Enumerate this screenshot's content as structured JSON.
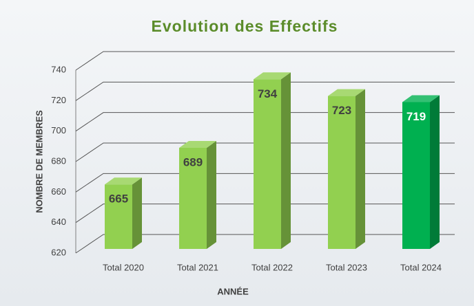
{
  "chart_data": {
    "type": "bar3d",
    "title": "Evolution des Effectifs",
    "x_label": "ANNÉE",
    "y_label": "NOMBRE DE MEMBRES",
    "categories": [
      "Total 2020",
      "Total 2021",
      "Total 2022",
      "Total 2023",
      "Total 2024"
    ],
    "values": [
      665,
      689,
      734,
      723,
      719
    ],
    "colors": [
      "#92d050",
      "#92d050",
      "#92d050",
      "#92d050",
      "#00b050"
    ],
    "value_label_colors": [
      "#404040",
      "#404040",
      "#404040",
      "#404040",
      "#ffffff"
    ],
    "ylim": [
      620,
      740
    ],
    "yticks": [
      620,
      640,
      660,
      680,
      700,
      720,
      740
    ],
    "grid": true
  }
}
